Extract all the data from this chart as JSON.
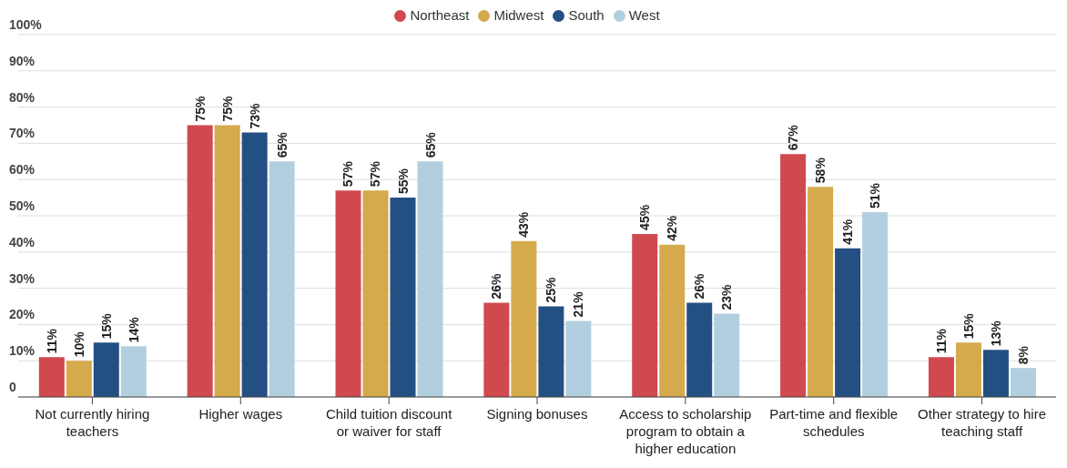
{
  "chart_data": {
    "type": "bar",
    "categories": [
      "Not currently hiring teachers",
      "Higher wages",
      "Child tuition discount or waiver for staff",
      "Signing bonuses",
      "Access to scholarship program to obtain a higher education",
      "Part-time and flexible schedules",
      "Other strategy to hire teaching staff"
    ],
    "series": [
      {
        "name": "Northeast",
        "color": "#d0494f",
        "values": [
          11,
          75,
          57,
          26,
          45,
          67,
          11
        ],
        "value_labels": [
          "11%",
          "75%",
          "57%",
          "26%",
          "45%",
          "67%",
          "11%"
        ]
      },
      {
        "name": "Midwest",
        "color": "#d4aa4c",
        "values": [
          10,
          75,
          57,
          43,
          42,
          58,
          15
        ],
        "value_labels": [
          "10%",
          "75%",
          "57%",
          "43%",
          "42%",
          "58%",
          "15%"
        ]
      },
      {
        "name": "South",
        "color": "#244f82",
        "values": [
          15,
          73,
          55,
          25,
          26,
          41,
          13
        ],
        "value_labels": [
          "15%",
          "73%",
          "55%",
          "25%",
          "26%",
          "41%",
          "13%"
        ]
      },
      {
        "name": "West",
        "color": "#b2cfe0",
        "values": [
          14,
          65,
          65,
          21,
          23,
          51,
          8
        ],
        "value_labels": [
          "14%",
          "65%",
          "65%",
          "21%",
          "23%",
          "51%",
          "8%"
        ]
      }
    ],
    "ylim": [
      0,
      100
    ],
    "yticks": [
      0,
      {
        "value": 10,
        "label": "10%"
      },
      {
        "value": 20,
        "label": "20%"
      },
      {
        "value": 30,
        "label": "30%"
      },
      {
        "value": 40,
        "label": "40%"
      },
      {
        "value": 50,
        "label": "50%"
      },
      {
        "value": 60,
        "label": "60%"
      },
      {
        "value": 70,
        "label": "70%"
      },
      {
        "value": 80,
        "label": "80%"
      },
      {
        "value": 90,
        "label": "90%"
      },
      {
        "value": 100,
        "label": "100%"
      }
    ],
    "grid": "y",
    "legend": "top"
  }
}
